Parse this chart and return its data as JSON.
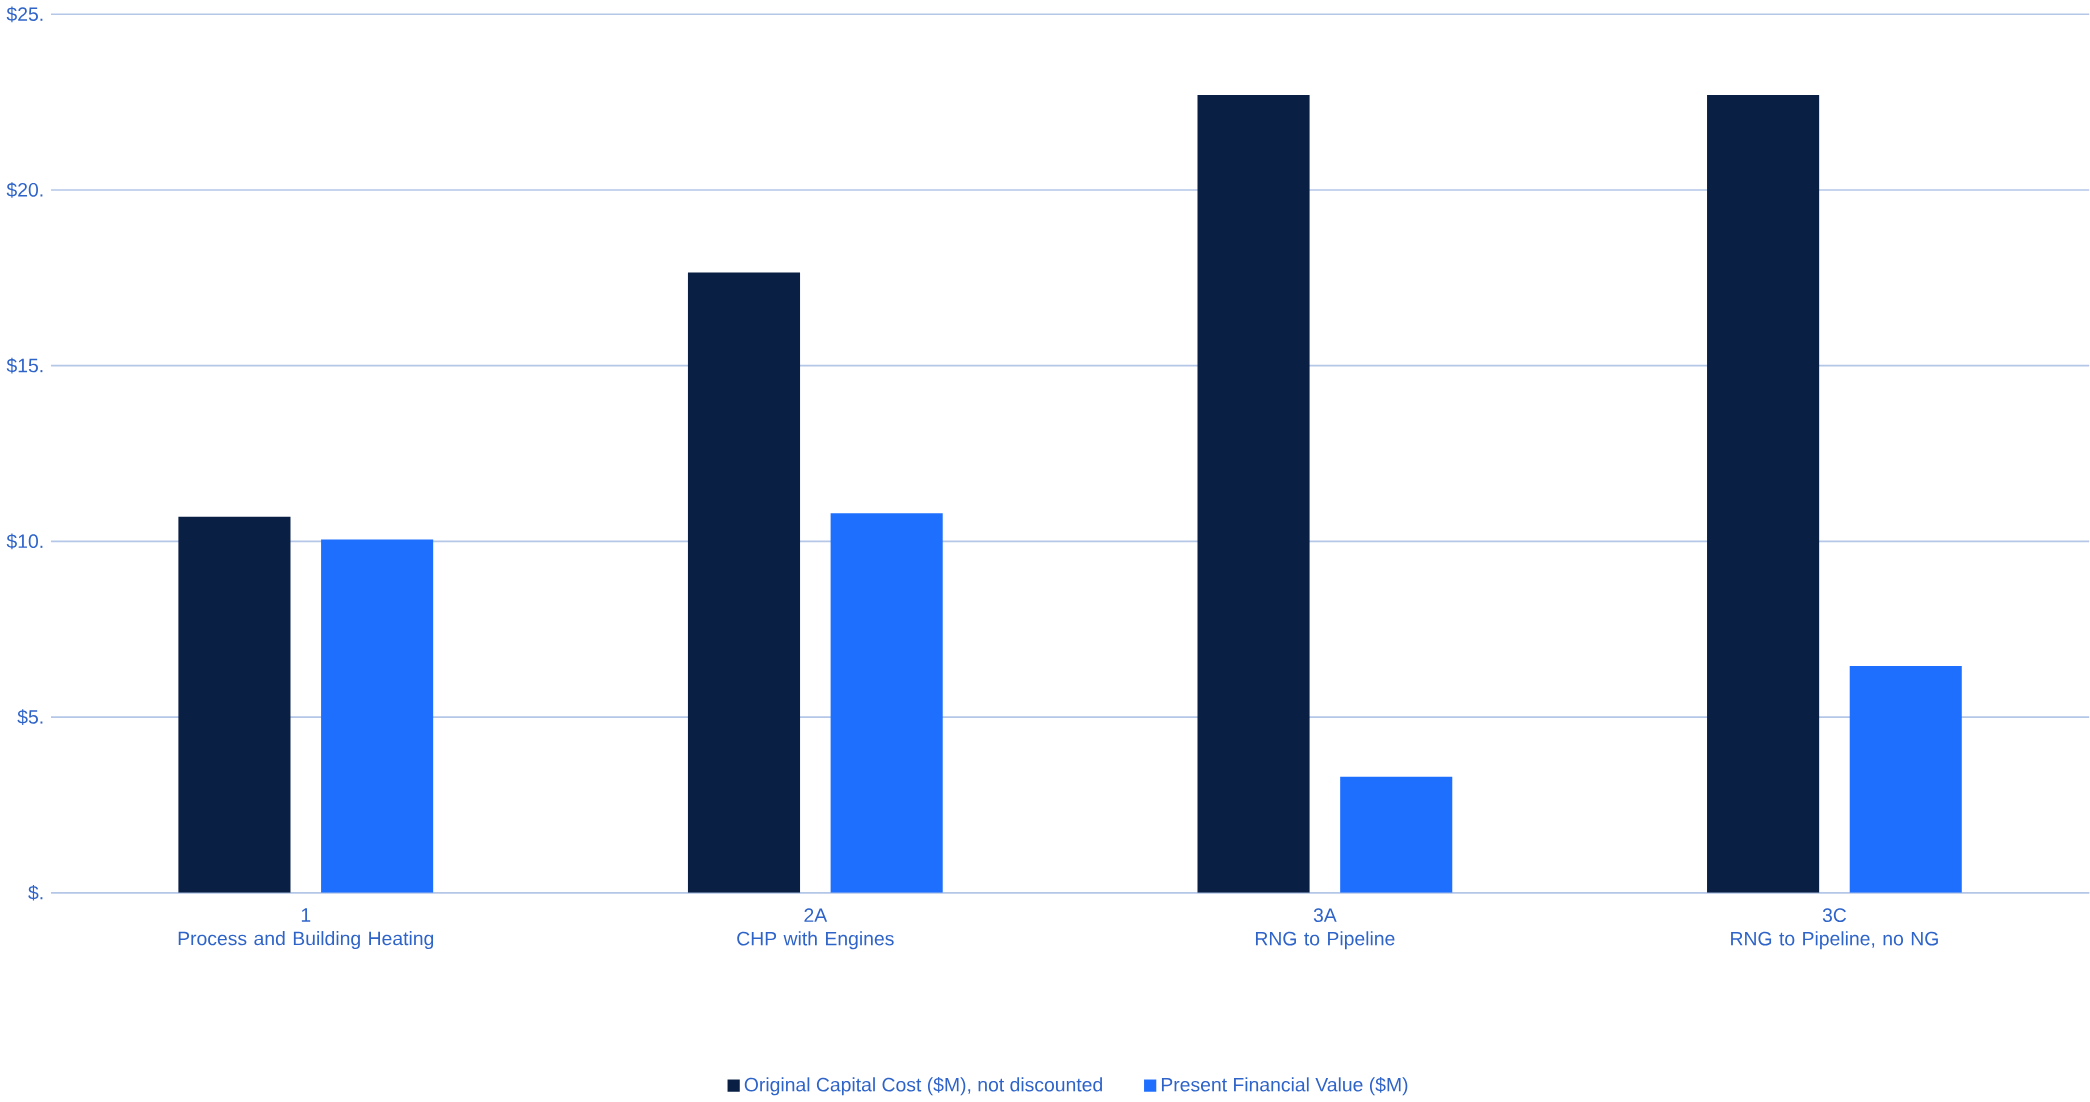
{
  "chart_data": {
    "type": "bar",
    "categories": [
      "1\nProcess and Building Heating",
      "2A\nCHP with Engines",
      "3A\nRNG to Pipeline",
      "3C\nRNG to Pipeline, no NG"
    ],
    "series": [
      {
        "name": "Original Capital Cost ($M), not discounted",
        "color": "#0a1f44",
        "values": [
          10.7,
          17.65,
          22.7,
          22.7
        ]
      },
      {
        "name": "Present Financial Value ($M)",
        "color": "#1f6fff",
        "values": [
          10.05,
          10.8,
          3.3,
          6.45
        ]
      }
    ],
    "ylim": [
      0,
      25
    ],
    "yticks": [
      {
        "value": 0,
        "label": "$."
      },
      {
        "value": 5,
        "label": "$5."
      },
      {
        "value": 10,
        "label": "$10."
      },
      {
        "value": 15,
        "label": "$15."
      },
      {
        "value": 20,
        "label": "$20."
      },
      {
        "value": 25,
        "label": "$25."
      }
    ],
    "grid": "y",
    "legend": "bottom"
  }
}
